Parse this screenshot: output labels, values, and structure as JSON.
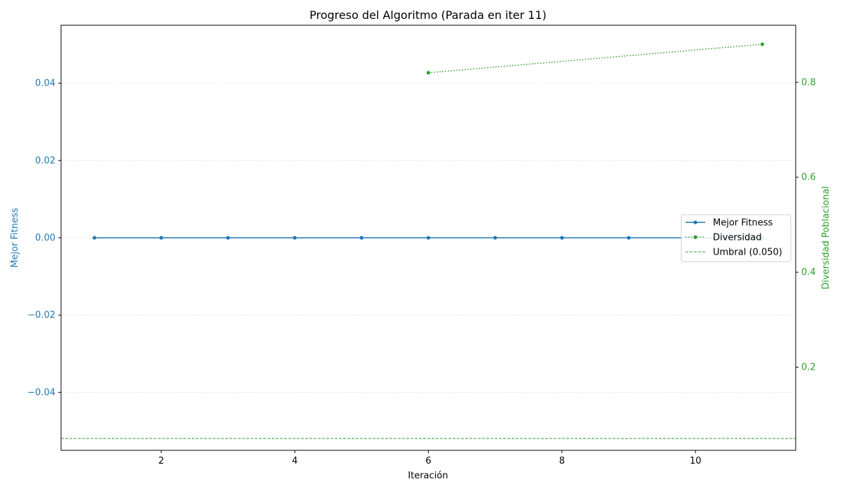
{
  "chart_data": {
    "type": "line",
    "title": "Progreso del Algoritmo (Parada en iter 11)",
    "xlabel": "Iteración",
    "ylabel_left": "Mejor Fitness",
    "ylabel_right": "Diversidad Poblacional",
    "xlim": [
      0.5,
      11.5
    ],
    "ylim_left": [
      -0.055,
      0.055
    ],
    "ylim_right": [
      0.025,
      0.92
    ],
    "x_ticks": [
      2,
      4,
      6,
      8,
      10
    ],
    "y_left_ticks": [
      -0.04,
      -0.02,
      0.0,
      0.02,
      0.04
    ],
    "y_left_tick_labels": [
      "−0.04",
      "−0.02",
      "0.00",
      "0.02",
      "0.04"
    ],
    "y_right_ticks": [
      0.2,
      0.4,
      0.6,
      0.8
    ],
    "y_right_tick_labels": [
      "0.2",
      "0.4",
      "0.6",
      "0.8"
    ],
    "grid": "horizontal-dotted",
    "legend_position": "center-right",
    "series": [
      {
        "name": "Mejor Fitness",
        "axis": "left",
        "color": "#1f77b4",
        "style": "solid",
        "x": [
          1,
          2,
          3,
          4,
          5,
          6,
          7,
          8,
          9,
          10,
          11
        ],
        "y": [
          0,
          0,
          0,
          0,
          0,
          0,
          0,
          0,
          0,
          0,
          0
        ]
      },
      {
        "name": "Diversidad",
        "axis": "right",
        "color": "#2ca02c",
        "style": "dotted",
        "x": [
          6,
          11
        ],
        "y": [
          0.82,
          0.88
        ]
      },
      {
        "name": "Umbral (0.050)",
        "axis": "right",
        "color": "#2ca02c",
        "style": "dashed",
        "type": "hline",
        "value": 0.05
      }
    ]
  }
}
